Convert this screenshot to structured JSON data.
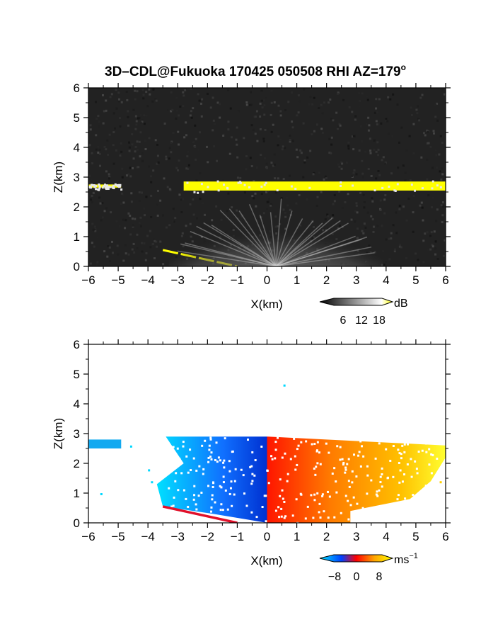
{
  "title": "3D–CDL@Fukuoka 170425 050508 RHI AZ=179",
  "title_sup": "o",
  "chart_data": [
    {
      "type": "heatmap",
      "name": "intensity-panel",
      "quantity": "backscatter intensity",
      "xlabel": "X(km)",
      "ylabel": "Z(km)",
      "xlim": [
        -6,
        6
      ],
      "ylim": [
        0,
        6
      ],
      "xticks": [
        -6,
        -5,
        -4,
        -3,
        -2,
        -1,
        0,
        1,
        2,
        3,
        4,
        5,
        6
      ],
      "yticks": [
        0,
        1,
        2,
        3,
        4,
        5,
        6
      ],
      "background": "#202020",
      "features": [
        {
          "kind": "layer",
          "label": "cloud base",
          "x": [
            -6,
            -4.9
          ],
          "z": [
            2.6,
            2.8
          ],
          "color": "#ffff00"
        },
        {
          "kind": "layer",
          "label": "cloud base",
          "x": [
            -2.8,
            6
          ],
          "z": [
            2.5,
            2.9
          ],
          "color": "#ffff00"
        },
        {
          "kind": "line",
          "label": "ground clutter",
          "points": [
            [
              -3.5,
              0.55
            ],
            [
              -1.0,
              0.0
            ]
          ],
          "color": "#ffff00"
        },
        {
          "kind": "fan",
          "label": "boundary layer",
          "x": [
            -3.5,
            3.7
          ],
          "z": [
            0,
            2.3
          ],
          "color": "#c8c8c8"
        }
      ],
      "colorbar": {
        "label": "dB",
        "ticks": [
          6,
          12,
          18
        ],
        "colors": [
          "#000000",
          "#ffffff",
          "#ffff00"
        ]
      }
    },
    {
      "type": "heatmap",
      "name": "velocity-panel",
      "quantity": "Doppler velocity",
      "xlabel": "X(km)",
      "ylabel": "Z(km)",
      "xlim": [
        -6,
        6
      ],
      "ylim": [
        0,
        6
      ],
      "xticks": [
        -6,
        -5,
        -4,
        -3,
        -2,
        -1,
        0,
        1,
        2,
        3,
        4,
        5,
        6
      ],
      "yticks": [
        0,
        1,
        2,
        3,
        4,
        5,
        6
      ],
      "background": "#ffffff",
      "features": [
        {
          "kind": "region",
          "label": "negative velocity",
          "x": [
            -3.5,
            0
          ],
          "z": [
            0,
            2.9
          ],
          "value_range": [
            -8,
            -3
          ]
        },
        {
          "kind": "region",
          "label": "positive velocity",
          "x": [
            0,
            6
          ],
          "z": [
            0,
            2.9
          ],
          "value_range": [
            2,
            8
          ]
        },
        {
          "kind": "layer",
          "label": "cloud layer",
          "x": [
            -6,
            -4.9
          ],
          "z": [
            2.5,
            2.8
          ],
          "value": -5
        },
        {
          "kind": "line",
          "label": "clutter",
          "points": [
            [
              -3.5,
              0.55
            ],
            [
              -1.0,
              0.0
            ]
          ],
          "color": "#e0102a"
        }
      ],
      "colorbar": {
        "label": "ms",
        "label_sup": "−1",
        "ticks": [
          "−8",
          "0",
          "8"
        ],
        "colors": [
          "#00e5ff",
          "#0040ff",
          "#ff0000",
          "#ffa500",
          "#ffff00"
        ]
      }
    }
  ]
}
